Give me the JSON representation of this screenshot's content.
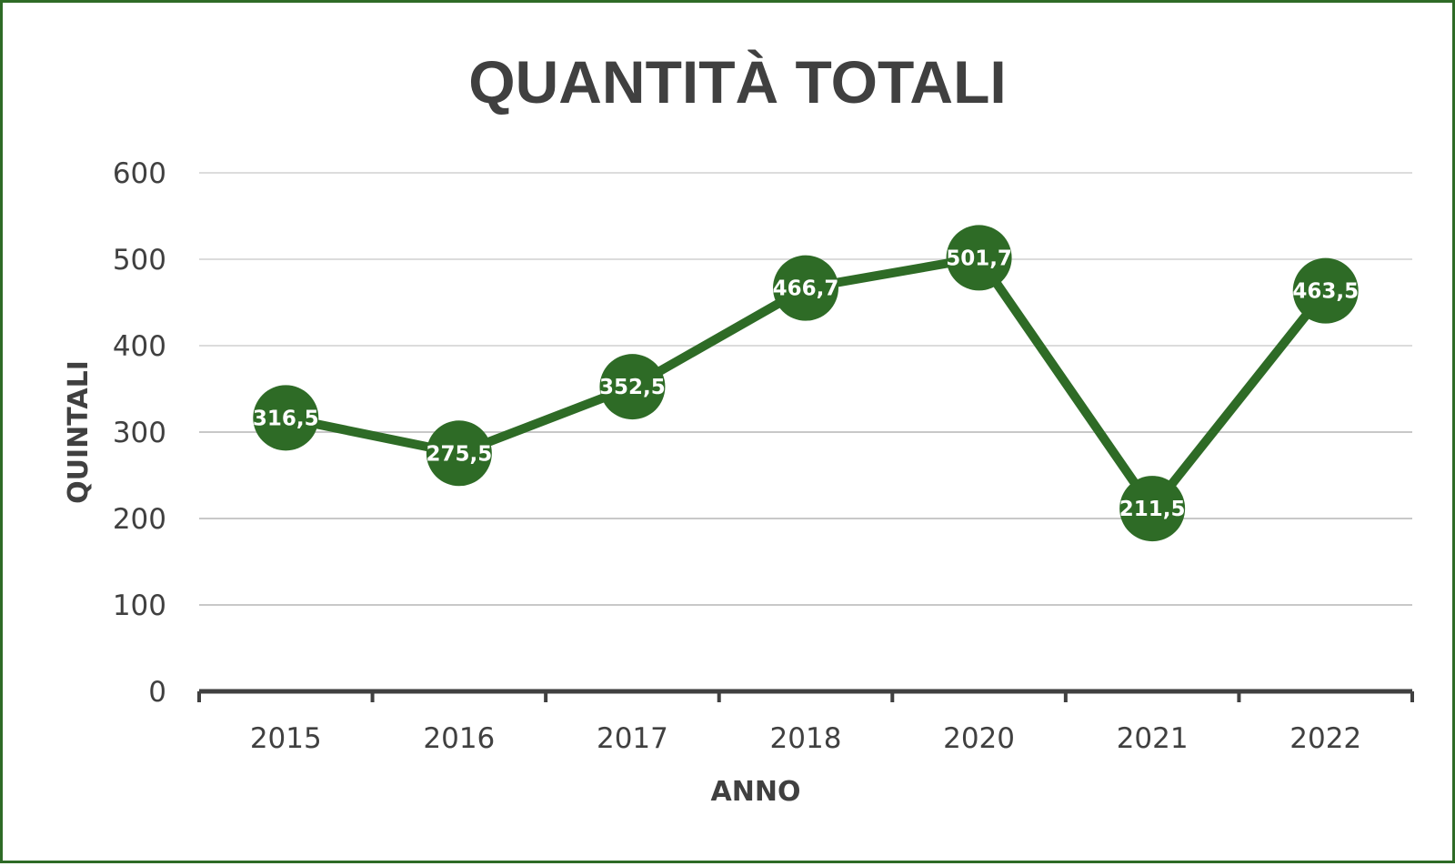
{
  "chart_data": {
    "type": "line",
    "title": "QUANTITÀ TOTALI",
    "xlabel": "ANNO",
    "ylabel": "QUINTALI",
    "categories": [
      "2015",
      "2016",
      "2017",
      "2018",
      "2020",
      "2021",
      "2022"
    ],
    "series": [
      {
        "values": [
          316.5,
          275.5,
          352.5,
          466.7,
          501.7,
          211.5,
          463.5
        ],
        "labels": [
          "316,5",
          "275,5",
          "352,5",
          "466,7",
          "501,7",
          "211,5",
          "463,5"
        ]
      }
    ],
    "ylim": [
      0,
      600
    ],
    "yticks": [
      0,
      100,
      200,
      300,
      400,
      500,
      600
    ],
    "grid": true,
    "legend": "none",
    "colors": {
      "series": "#2e6b26",
      "frame": "#2e6b26",
      "text": "#404040",
      "grid": "#d9d9d9",
      "axis": "#404040",
      "label_text": "#ffffff"
    }
  }
}
